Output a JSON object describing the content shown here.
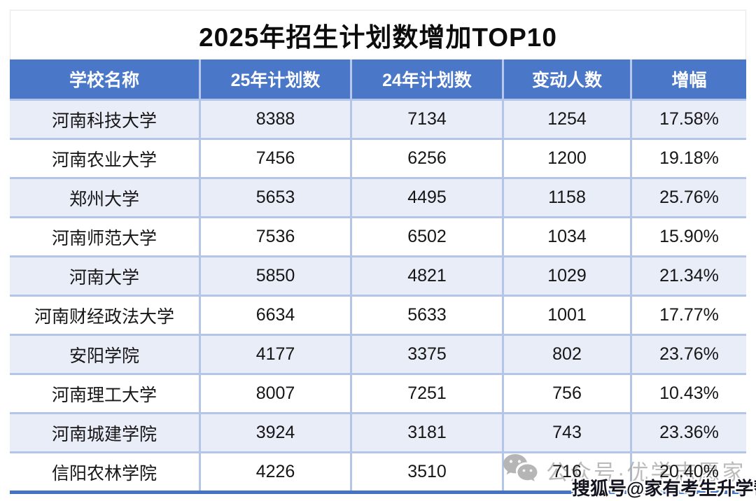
{
  "title": "2025年招生计划数增加TOP10",
  "table": {
    "columns": [
      "学校名称",
      "25年计划数",
      "24年计划数",
      "变动人数",
      "增幅"
    ],
    "rows": [
      [
        "河南科技大学",
        "8388",
        "7134",
        "1254",
        "17.58%"
      ],
      [
        "河南农业大学",
        "7456",
        "6256",
        "1200",
        "19.18%"
      ],
      [
        "郑州大学",
        "5653",
        "4495",
        "1158",
        "25.76%"
      ],
      [
        "河南师范大学",
        "7536",
        "6502",
        "1034",
        "15.90%"
      ],
      [
        "河南大学",
        "5850",
        "4821",
        "1029",
        "21.34%"
      ],
      [
        "河南财经政法大学",
        "6634",
        "5633",
        "1001",
        "17.77%"
      ],
      [
        "安阳学院",
        "4177",
        "3375",
        "802",
        "23.76%"
      ],
      [
        "河南理工大学",
        "8007",
        "7251",
        "756",
        "10.43%"
      ],
      [
        "河南城建学院",
        "3924",
        "3181",
        "743",
        "23.36%"
      ],
      [
        "信阳农林学院",
        "4226",
        "3510",
        "716",
        "20.40%"
      ]
    ]
  },
  "watermarks": {
    "wechat_icon": "wechat-icon",
    "wechat_text": "公众号·优学志愿家",
    "sohu_text": "搜狐号@家有考生升学帮"
  },
  "colors": {
    "header_bg": "#4a77c8",
    "row_alt_bg": "#e9edf8",
    "row_bg": "#ffffff",
    "grid_border": "#b4c6e7",
    "bottom_border": "#4472c4",
    "header_text": "#ffffff",
    "cell_text": "#161616",
    "watermark_gray": "#aaaaaa"
  },
  "chart_data": {
    "type": "table",
    "title": "2025年招生计划数增加TOP10",
    "columns": [
      "学校名称",
      "25年计划数",
      "24年计划数",
      "变动人数",
      "增幅"
    ],
    "rows": [
      [
        "河南科技大学",
        8388,
        7134,
        1254,
        "17.58%"
      ],
      [
        "河南农业大学",
        7456,
        6256,
        1200,
        "19.18%"
      ],
      [
        "郑州大学",
        5653,
        4495,
        1158,
        "25.76%"
      ],
      [
        "河南师范大学",
        7536,
        6502,
        1034,
        "15.90%"
      ],
      [
        "河南大学",
        5850,
        4821,
        1029,
        "21.34%"
      ],
      [
        "河南财经政法大学",
        6634,
        5633,
        1001,
        "17.77%"
      ],
      [
        "安阳学院",
        4177,
        3375,
        802,
        "23.76%"
      ],
      [
        "河南理工大学",
        8007,
        7251,
        756,
        "10.43%"
      ],
      [
        "河南城建学院",
        3924,
        3181,
        743,
        "23.36%"
      ],
      [
        "信阳农林学院",
        4226,
        3510,
        716,
        "20.40%"
      ]
    ]
  }
}
